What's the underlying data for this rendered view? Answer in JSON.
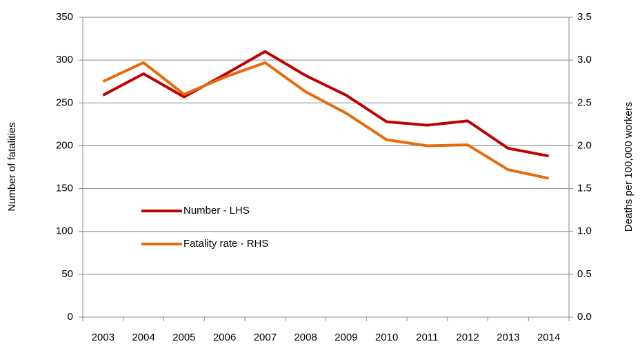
{
  "chart_data": {
    "type": "line",
    "y_label": "Number of fatalities",
    "y2_label": "Deaths per 100,000 workers",
    "categories": [
      "2003",
      "2004",
      "2005",
      "2006",
      "2007",
      "2008",
      "2009",
      "2010",
      "2011",
      "2012",
      "2013",
      "2014"
    ],
    "series": [
      {
        "name": "Number - LHS",
        "color": "#c00000",
        "values": [
          259,
          284,
          257,
          283,
          310,
          282,
          259,
          228,
          224,
          229,
          197,
          188
        ]
      },
      {
        "name": "Fatality rate - RHS",
        "color": "#e46c0a",
        "axis": "y2",
        "values": [
          2.75,
          2.97,
          2.6,
          2.8,
          2.97,
          2.63,
          2.38,
          2.07,
          2.0,
          2.01,
          1.72,
          1.62
        ]
      }
    ],
    "ylim": [
      0,
      350
    ],
    "yticks": [
      0,
      50,
      100,
      150,
      200,
      250,
      300,
      350
    ],
    "y2lim": [
      0,
      3.5
    ],
    "y2ticks": [
      {
        "value": 0,
        "label": "0.0"
      },
      0.5,
      {
        "value": 1,
        "label": "1.0"
      },
      1.5,
      {
        "value": 2,
        "label": "2.0"
      },
      2.5,
      {
        "value": 3,
        "label": "3.0"
      },
      3.5
    ],
    "grid": true
  }
}
